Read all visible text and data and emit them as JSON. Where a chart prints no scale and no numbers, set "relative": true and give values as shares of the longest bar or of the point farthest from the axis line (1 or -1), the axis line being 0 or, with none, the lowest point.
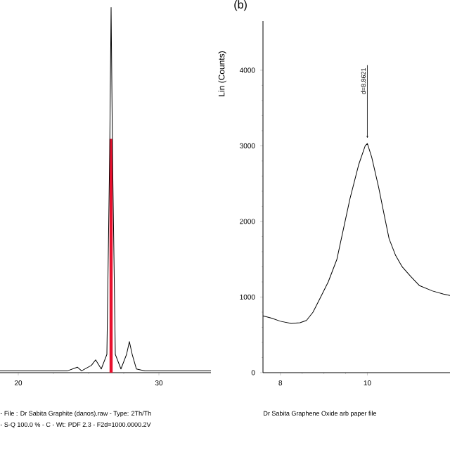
{
  "chart_data": [
    {
      "type": "line",
      "relative": true,
      "xlim": [
        18.7,
        33.7
      ],
      "xticks": [
        20,
        30
      ],
      "tick_labels": "x",
      "series": [
        {
          "type": "line",
          "color": "#000000",
          "x": [
            18.7,
            23.5,
            24.2,
            24.5,
            25.2,
            25.5,
            25.9,
            26.3,
            26.5,
            26.6,
            26.7,
            26.9,
            27.3,
            27.7,
            27.9,
            28.1,
            28.4,
            29.0,
            33.7
          ],
          "values": [
            0.005,
            0.005,
            0.015,
            0.005,
            0.02,
            0.035,
            0.01,
            0.05,
            0.6,
            1,
            0.6,
            0.05,
            0.01,
            0.05,
            0.085,
            0.05,
            0.01,
            0.005,
            0.005
          ]
        },
        {
          "type": "bar",
          "color": "#e8102e",
          "x": [
            26.6
          ],
          "values": [
            0.64
          ]
        }
      ],
      "annotations": [
        "- File : Dr Sabita Graphite (danos).raw - Type: 2Th/Th",
        "- S-Q 100.0 % - C - Wt: PDF 2.3 - F2d=1000.0000.2V"
      ]
    },
    {
      "type": "line",
      "title": "(b)",
      "ylabel": "Lin (Counts)",
      "xlim": [
        7.6,
        11.9
      ],
      "ylim": [
        0,
        4650
      ],
      "xticks": [
        8,
        10
      ],
      "yticks": [
        0,
        1000,
        2000,
        3000,
        4000
      ],
      "series": [
        {
          "color": "#000000",
          "x": [
            7.6,
            7.8,
            8.0,
            8.25,
            8.45,
            8.6,
            8.75,
            8.9,
            9.1,
            9.3,
            9.45,
            9.6,
            9.8,
            9.95,
            10.0,
            10.1,
            10.26,
            10.4,
            10.5,
            10.65,
            10.8,
            11.0,
            11.2,
            11.5,
            11.75,
            11.9
          ],
          "values": [
            750,
            720,
            680,
            650,
            660,
            690,
            800,
            970,
            1200,
            1500,
            1900,
            2300,
            2750,
            3000,
            3030,
            2850,
            2450,
            2050,
            1770,
            1550,
            1400,
            1270,
            1150,
            1080,
            1040,
            1020
          ]
        }
      ],
      "annotations": [
        {
          "text": "d=8.8621",
          "x": 10,
          "y": 3100
        },
        "Dr Sabita Graphene Oxide arb paper file"
      ]
    }
  ]
}
